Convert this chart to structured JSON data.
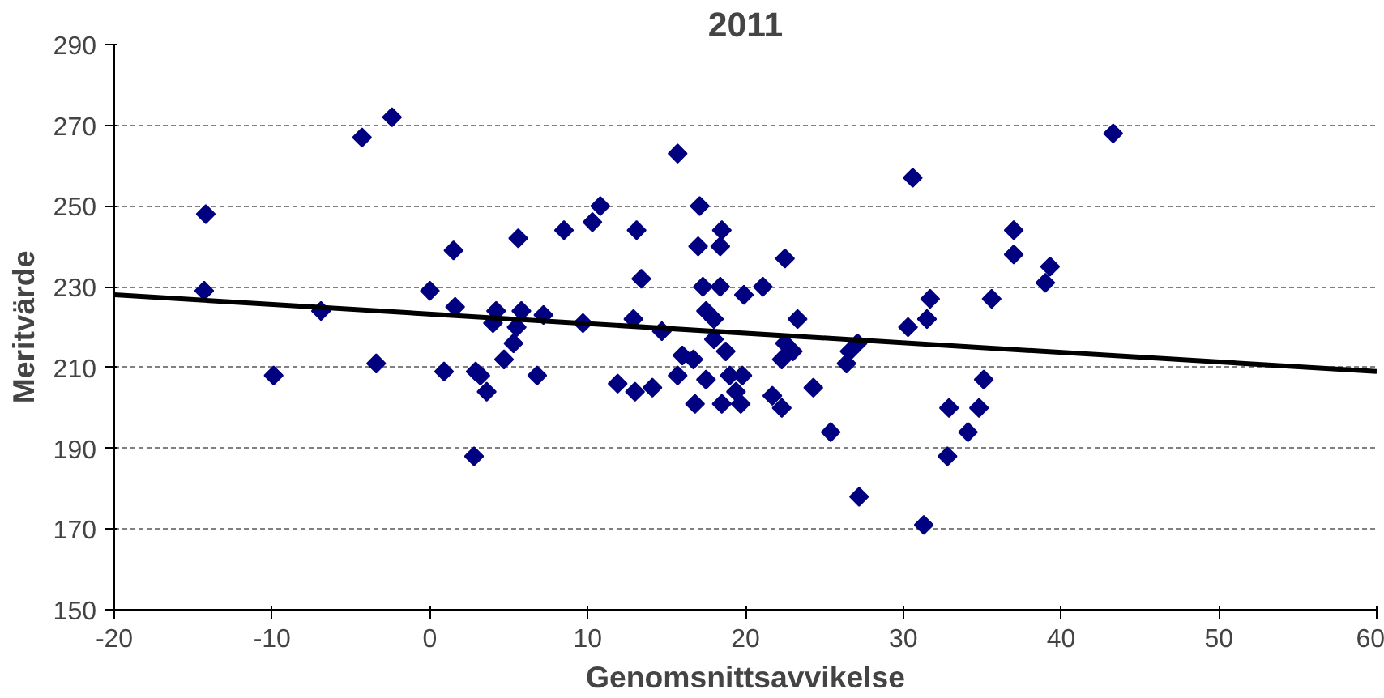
{
  "chart_data": {
    "type": "scatter",
    "title": "2011",
    "xlabel": "Genomsnittsavvikelse",
    "ylabel": "Meritvärde",
    "marker": "diamond",
    "grid": "y",
    "xlim": [
      -20,
      60
    ],
    "xticks": [
      -20,
      -10,
      0,
      10,
      20,
      30,
      40,
      50,
      60
    ],
    "ylim": [
      150,
      290
    ],
    "yticks": [
      150,
      170,
      190,
      210,
      230,
      250,
      270,
      290
    ],
    "series": [
      {
        "color": "#000080",
        "x": [
          -14.2,
          -14.3,
          -9.9,
          -6.9,
          -4.3,
          -2.4,
          -3.4,
          0,
          0.9,
          1.5,
          1.6,
          2.9,
          2.8,
          3.2,
          3.6,
          4.0,
          4.2,
          4.7,
          5.3,
          5.6,
          5.8,
          5.5,
          6.8,
          7.2,
          8.5,
          9.7,
          10.3,
          10.8,
          11.9,
          12.9,
          13,
          13.1,
          13.4,
          14.1,
          14.7,
          15.7,
          15.7,
          16,
          16.7,
          17,
          17.1,
          16.8,
          17.5,
          17.5,
          17.3,
          18.0,
          18.4,
          18.5,
          18.4,
          18.0,
          18.5,
          18.75,
          19.0,
          19.4,
          19.7,
          19.8,
          19.9,
          21.1,
          21.7,
          22.3,
          22.3,
          22.5,
          22.5,
          23,
          23.3,
          24.3,
          25.4,
          26.4,
          26.6,
          27.2,
          27.1,
          30.3,
          30.6,
          31.5,
          31.7,
          31.3,
          32.8,
          32.9,
          34.1,
          34.8,
          35.1,
          35.6,
          37.0,
          37.0,
          39.0,
          39.3,
          43.3
        ],
        "values": [
          248,
          229,
          208,
          224,
          267,
          272,
          211,
          229,
          209,
          239,
          225,
          209,
          188,
          208,
          204,
          221,
          224,
          212,
          216,
          242,
          224,
          220,
          208,
          223,
          244,
          221,
          246,
          250,
          206,
          222,
          204,
          244,
          232,
          205,
          219,
          208,
          263,
          213,
          212,
          240,
          250,
          201,
          207,
          224,
          230,
          217,
          230,
          244,
          240,
          222,
          201,
          214,
          208,
          204,
          201,
          208,
          228,
          230,
          203,
          200,
          212,
          237,
          216,
          214,
          222,
          205,
          194,
          211,
          214,
          178,
          216,
          220,
          257,
          222,
          227,
          171,
          188,
          200,
          194,
          200,
          207,
          227,
          244,
          238,
          231,
          235,
          268
        ]
      },
      {
        "type": "line",
        "marker": "none",
        "color": "#000000",
        "x": [
          -20,
          60
        ],
        "values": [
          228,
          209
        ]
      }
    ]
  }
}
